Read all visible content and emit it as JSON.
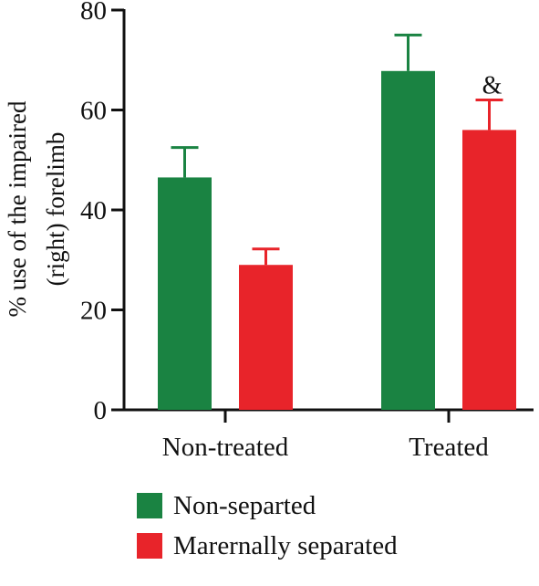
{
  "chart_data": {
    "type": "bar",
    "categories": [
      "Non-treated",
      "Treated"
    ],
    "series": [
      {
        "name": "Non-separted",
        "color": "#1a8342",
        "values": [
          46.5,
          67.8
        ],
        "errors": [
          6.0,
          7.2
        ]
      },
      {
        "name": "Marernally separated",
        "color": "#e8242a",
        "values": [
          29.0,
          56.0
        ],
        "errors": [
          3.2,
          6.0
        ]
      }
    ],
    "ylabel_lines": [
      "% use of the impaired",
      "(right) forelimb"
    ],
    "ylim": [
      0,
      80
    ],
    "yticks": [
      0,
      20,
      40,
      60,
      80
    ],
    "annotations": [
      {
        "text": "&",
        "category": "Treated",
        "series": "Marernally separated"
      }
    ],
    "legend_position": "bottom"
  }
}
